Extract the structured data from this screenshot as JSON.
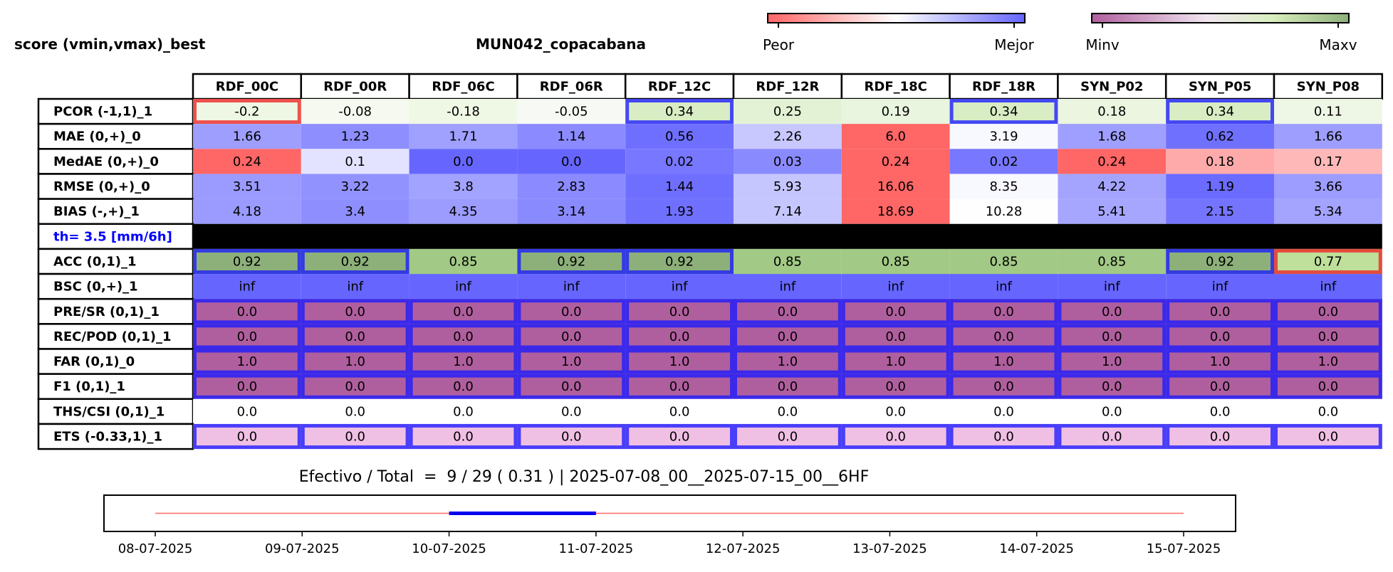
{
  "header": {
    "left_title": "score (vmin,vmax)_best",
    "station": "MUN042_copacabana"
  },
  "colorbars": [
    {
      "left_label": "Peor",
      "right_label": "Mejor",
      "colors": [
        "#ff6666",
        "#ffffff",
        "#6666ff"
      ]
    },
    {
      "left_label": "Minv",
      "right_label": "Maxv",
      "colors": [
        "#b05f9e",
        "#f1e6f0",
        "#8db07a"
      ]
    }
  ],
  "chart_data": [
    {
      "type": "table",
      "columns": [
        "RDF_00C",
        "RDF_00R",
        "RDF_06C",
        "RDF_06R",
        "RDF_12C",
        "RDF_12R",
        "RDF_18C",
        "RDF_18R",
        "SYN_P02",
        "SYN_P05",
        "SYN_P08"
      ],
      "rows": [
        {
          "label": "PCOR (-1,1)_1",
          "values": [
            "-0.2",
            "-0.08",
            "-0.18",
            "-0.05",
            "0.34",
            "0.25",
            "0.19",
            "0.34",
            "0.18",
            "0.34",
            "0.11"
          ],
          "colors": [
            "#eef7e3",
            "#f5f9f0",
            "#eff7e5",
            "#f7faf4",
            "#d8edc4",
            "#e3f2d4",
            "#e9f5de",
            "#d8edc4",
            "#ebf5e0",
            "#d8edc4",
            "#eef7e6"
          ],
          "boxes": [
            "red",
            "",
            "",
            "",
            "blue",
            "",
            "",
            "blue",
            "",
            "blue",
            ""
          ]
        },
        {
          "label": "MAE (0,+)_0",
          "values": [
            "1.66",
            "1.23",
            "1.71",
            "1.14",
            "0.56",
            "2.26",
            "6.0",
            "3.19",
            "1.68",
            "0.62",
            "1.66"
          ],
          "colors": [
            "#9e9eff",
            "#8e8eff",
            "#a0a0ff",
            "#8b8bff",
            "#6f6fff",
            "#c8c8ff",
            "#ff6666",
            "#f8f8ff",
            "#9f9fff",
            "#7070ff",
            "#9e9eff"
          ],
          "boxes": []
        },
        {
          "label": "MedAE (0,+)_0",
          "values": [
            "0.24",
            "0.1",
            "0.0",
            "0.0",
            "0.02",
            "0.03",
            "0.24",
            "0.02",
            "0.24",
            "0.18",
            "0.17"
          ],
          "colors": [
            "#ff6666",
            "#e3e3ff",
            "#6666ff",
            "#6666ff",
            "#7777ff",
            "#8a8aff",
            "#ff6666",
            "#7777ff",
            "#ff6666",
            "#ffaaaa",
            "#ffb8b8"
          ],
          "boxes": []
        },
        {
          "label": "RMSE (0,+)_0",
          "values": [
            "3.51",
            "3.22",
            "3.8",
            "2.83",
            "1.44",
            "5.93",
            "16.06",
            "8.35",
            "4.22",
            "1.19",
            "3.66"
          ],
          "colors": [
            "#9a9aff",
            "#9292ff",
            "#a2a2ff",
            "#8b8bff",
            "#6f6fff",
            "#c6c6ff",
            "#ff6666",
            "#f8f8ff",
            "#a4a4ff",
            "#6b6bff",
            "#9d9dff"
          ],
          "boxes": []
        },
        {
          "label": "BIAS (-,+)_1",
          "values": [
            "4.18",
            "3.4",
            "4.35",
            "3.14",
            "1.93",
            "7.14",
            "18.69",
            "10.28",
            "5.41",
            "2.15",
            "5.34"
          ],
          "colors": [
            "#9a9aff",
            "#8e8eff",
            "#9c9cff",
            "#8a8aff",
            "#7070ff",
            "#c6c6ff",
            "#ff6666",
            "#fefeff",
            "#a6a6ff",
            "#7474ff",
            "#a4a4ff"
          ],
          "boxes": []
        },
        {
          "label": "th= 3.5 [mm/6h]",
          "separator": true,
          "values": []
        },
        {
          "label": "ACC (0,1)_1",
          "values": [
            "0.92",
            "0.92",
            "0.85",
            "0.92",
            "0.92",
            "0.85",
            "0.85",
            "0.85",
            "0.85",
            "0.92",
            "0.77"
          ],
          "colors": [
            "#8db07a",
            "#8db07a",
            "#a2c985",
            "#8db07a",
            "#8db07a",
            "#a2c985",
            "#a2c985",
            "#a2c985",
            "#a2c985",
            "#8db07a",
            "#bfe09a"
          ],
          "boxes": [
            "blue",
            "blue",
            "",
            "blue",
            "blue",
            "",
            "",
            "",
            "",
            "blue",
            "red"
          ]
        },
        {
          "label": "BSC (0,+)_1",
          "values": [
            "inf",
            "inf",
            "inf",
            "inf",
            "inf",
            "inf",
            "inf",
            "inf",
            "inf",
            "inf",
            "inf"
          ],
          "colors": [
            "#6666ff",
            "#6666ff",
            "#6666ff",
            "#6666ff",
            "#6666ff",
            "#6666ff",
            "#6666ff",
            "#6666ff",
            "#6666ff",
            "#6666ff",
            "#6666ff"
          ],
          "boxes": []
        },
        {
          "label": "PRE/SR (0,1)_1",
          "values": [
            "0.0",
            "0.0",
            "0.0",
            "0.0",
            "0.0",
            "0.0",
            "0.0",
            "0.0",
            "0.0",
            "0.0",
            "0.0"
          ],
          "colors": [
            "#b05f9e",
            "#b05f9e",
            "#b05f9e",
            "#b05f9e",
            "#b05f9e",
            "#b05f9e",
            "#b05f9e",
            "#b05f9e",
            "#b05f9e",
            "#b05f9e",
            "#b05f9e"
          ],
          "boxes": [
            "blue",
            "blue",
            "blue",
            "blue",
            "blue",
            "blue",
            "blue",
            "blue",
            "blue",
            "blue",
            "blue"
          ]
        },
        {
          "label": "REC/POD (0,1)_1",
          "values": [
            "0.0",
            "0.0",
            "0.0",
            "0.0",
            "0.0",
            "0.0",
            "0.0",
            "0.0",
            "0.0",
            "0.0",
            "0.0"
          ],
          "colors": [
            "#b05f9e",
            "#b05f9e",
            "#b05f9e",
            "#b05f9e",
            "#b05f9e",
            "#b05f9e",
            "#b05f9e",
            "#b05f9e",
            "#b05f9e",
            "#b05f9e",
            "#b05f9e"
          ],
          "boxes": [
            "blue",
            "blue",
            "blue",
            "blue",
            "blue",
            "blue",
            "blue",
            "blue",
            "blue",
            "blue",
            "blue"
          ]
        },
        {
          "label": "FAR (0,1)_0",
          "values": [
            "1.0",
            "1.0",
            "1.0",
            "1.0",
            "1.0",
            "1.0",
            "1.0",
            "1.0",
            "1.0",
            "1.0",
            "1.0"
          ],
          "colors": [
            "#b05f9e",
            "#b05f9e",
            "#b05f9e",
            "#b05f9e",
            "#b05f9e",
            "#b05f9e",
            "#b05f9e",
            "#b05f9e",
            "#b05f9e",
            "#b05f9e",
            "#b05f9e"
          ],
          "boxes": [
            "blue",
            "blue",
            "blue",
            "blue",
            "blue",
            "blue",
            "blue",
            "blue",
            "blue",
            "blue",
            "blue"
          ]
        },
        {
          "label": "F1 (0,1)_1",
          "values": [
            "0.0",
            "0.0",
            "0.0",
            "0.0",
            "0.0",
            "0.0",
            "0.0",
            "0.0",
            "0.0",
            "0.0",
            "0.0"
          ],
          "colors": [
            "#b05f9e",
            "#b05f9e",
            "#b05f9e",
            "#b05f9e",
            "#b05f9e",
            "#b05f9e",
            "#b05f9e",
            "#b05f9e",
            "#b05f9e",
            "#b05f9e",
            "#b05f9e"
          ],
          "boxes": [
            "blue",
            "blue",
            "blue",
            "blue",
            "blue",
            "blue",
            "blue",
            "blue",
            "blue",
            "blue",
            "blue"
          ]
        },
        {
          "label": "THS/CSI (0,1)_1",
          "values": [
            "0.0",
            "0.0",
            "0.0",
            "0.0",
            "0.0",
            "0.0",
            "0.0",
            "0.0",
            "0.0",
            "0.0",
            "0.0"
          ],
          "colors": [
            "#ffffff",
            "#ffffff",
            "#ffffff",
            "#ffffff",
            "#ffffff",
            "#ffffff",
            "#ffffff",
            "#ffffff",
            "#ffffff",
            "#ffffff",
            "#ffffff"
          ],
          "boxes": []
        },
        {
          "label": "ETS (-0.33,1)_1",
          "values": [
            "0.0",
            "0.0",
            "0.0",
            "0.0",
            "0.0",
            "0.0",
            "0.0",
            "0.0",
            "0.0",
            "0.0",
            "0.0"
          ],
          "colors": [
            "#f0bfe4",
            "#f0bfe4",
            "#f0bfe4",
            "#f0bfe4",
            "#f0bfe4",
            "#f0bfe4",
            "#f0bfe4",
            "#f0bfe4",
            "#f0bfe4",
            "#f0bfe4",
            "#f0bfe4"
          ],
          "boxes": [
            "blue",
            "blue",
            "blue",
            "blue",
            "blue",
            "blue",
            "blue",
            "blue",
            "blue",
            "blue",
            "blue"
          ]
        }
      ]
    },
    {
      "type": "line",
      "title": "Efectivo / Total  =  9 / 29 ( 0.31 ) | 2025-07-08_00__2025-07-15_00__6HF",
      "x_ticks": [
        "08-07-2025",
        "09-07-2025",
        "10-07-2025",
        "11-07-2025",
        "12-07-2025",
        "13-07-2025",
        "14-07-2025",
        "15-07-2025"
      ],
      "series": [
        {
          "x": [
            "08-07-2025",
            "15-07-2025"
          ],
          "color": "#ff6666"
        },
        {
          "x": [
            "10-07-2025",
            "11-07-2025"
          ],
          "color": "#0000ee"
        }
      ]
    }
  ]
}
